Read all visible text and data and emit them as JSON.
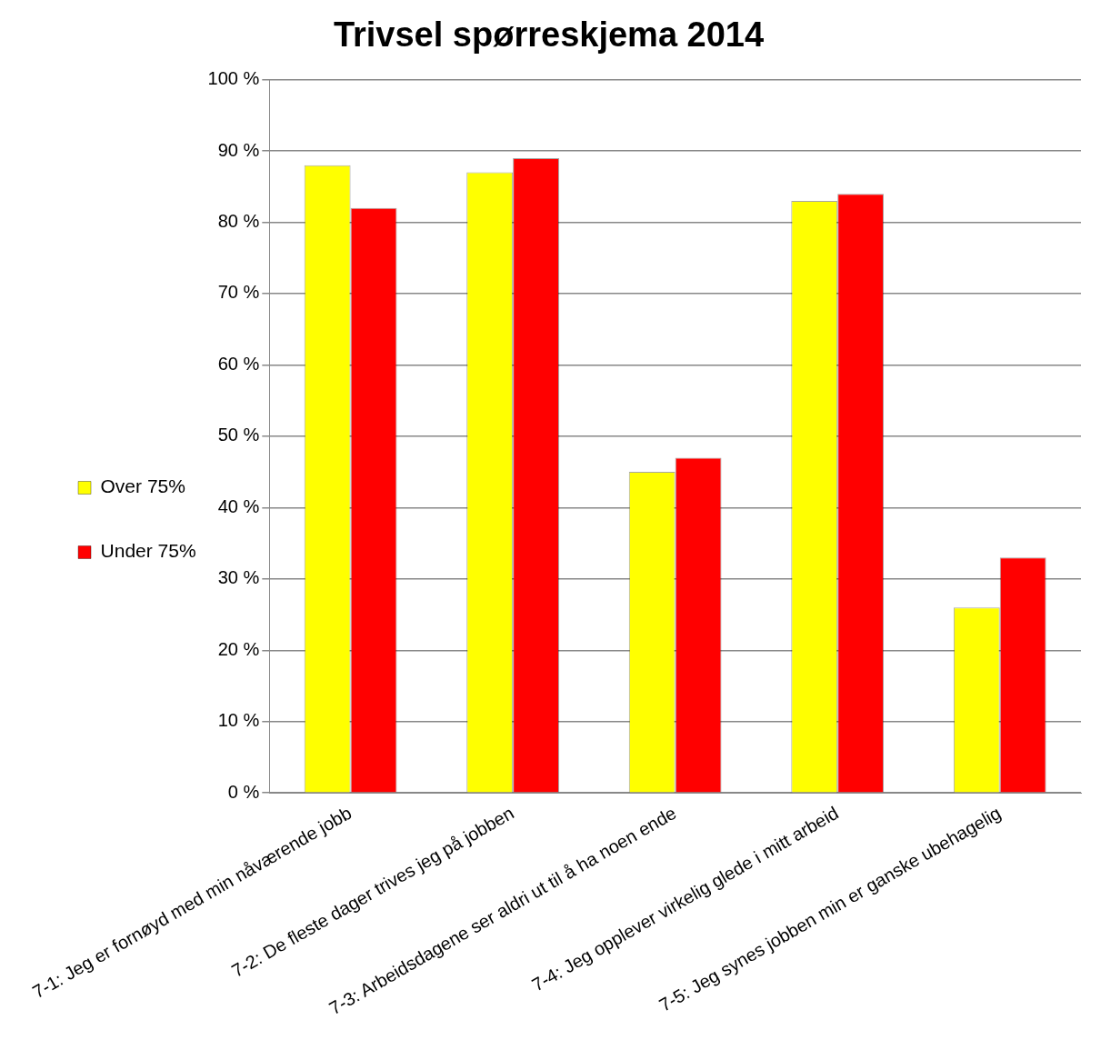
{
  "chart_data": {
    "type": "bar",
    "title": "Trivsel spørreskjema 2014",
    "categories": [
      "7-1: Jeg er fornøyd med min nåværende jobb",
      "7-2: De fleste dager trives jeg på jobben",
      "7-3: Arbeidsdagene ser aldri ut til å ha noen ende",
      "7-4: Jeg opplever virkelig glede i mitt arbeid",
      "7-5: Jeg synes jobben min er ganske ubehagelig"
    ],
    "series": [
      {
        "name": "Over 75%",
        "color": "#ffff00",
        "values": [
          88,
          87,
          45,
          83,
          26
        ]
      },
      {
        "name": "Under 75%",
        "color": "#ff0000",
        "values": [
          82,
          89,
          47,
          84,
          33
        ]
      }
    ],
    "ylim": [
      0,
      100
    ],
    "yticks": [
      {
        "value": 0,
        "label": "0 %"
      },
      {
        "value": 10,
        "label": "10 %"
      },
      {
        "value": 20,
        "label": "20 %"
      },
      {
        "value": 30,
        "label": "30 %"
      },
      {
        "value": 40,
        "label": "40 %"
      },
      {
        "value": 50,
        "label": "50 %"
      },
      {
        "value": 60,
        "label": "60 %"
      },
      {
        "value": 70,
        "label": "70 %"
      },
      {
        "value": 80,
        "label": "80 %"
      },
      {
        "value": 90,
        "label": "90 %"
      },
      {
        "value": 100,
        "label": "100 %"
      }
    ],
    "grid": "y",
    "legend": "left"
  }
}
